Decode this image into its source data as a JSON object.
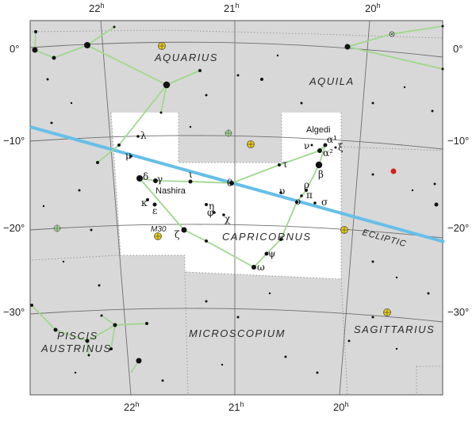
{
  "ra_labels": {
    "h22": "22",
    "h21": "21",
    "h20": "20",
    "unit": "h"
  },
  "dec_labels": {
    "d0": "0°",
    "d10": "−10°",
    "d20": "−20°",
    "d30": "−30°"
  },
  "constellations": {
    "aquarius": "AQUARIUS",
    "aquila": "AQUILA",
    "capricornus": "CAPRICORNUS",
    "piscis_austrinus_1": "PISCIS",
    "piscis_austrinus_2": "AUSTRINUS",
    "microscopium": "MICROSCOPIUM",
    "sagittarius": "SAGITTARIUS"
  },
  "named_stars": {
    "algedi": "Algedi",
    "nashira": "Nashira"
  },
  "ecliptic_label": "ECLIPTIC",
  "deep_sky": {
    "m30": "M30"
  },
  "greek": {
    "alpha1": "α¹",
    "alpha2": "α²",
    "xi": "ξ",
    "nu": "ν",
    "beta": "β",
    "tau": "τ",
    "rho": "ρ",
    "pi": "π",
    "upsilon": "υ",
    "omicron": "ο",
    "sigma": "σ",
    "theta": "θ",
    "iota": "ι",
    "gamma": "γ",
    "delta": "δ",
    "lambda": "λ",
    "mu": "μ",
    "kappa": "κ",
    "epsilon": "ε",
    "eta": "η",
    "phi": "φ",
    "chi": "χ",
    "zeta": "ζ",
    "psi": "ψ",
    "omega": "ω"
  },
  "colors": {
    "background": "#d8d8d8",
    "highlight": "#ffffff",
    "grid": "#6e6e6e",
    "boundary": "#9a9a9a",
    "stick_figure": "#9fd88e",
    "ecliptic": "#66bfe8",
    "star": "#111111",
    "deep_sky_fill": "#f4d000",
    "red_star": "#d62020"
  }
}
